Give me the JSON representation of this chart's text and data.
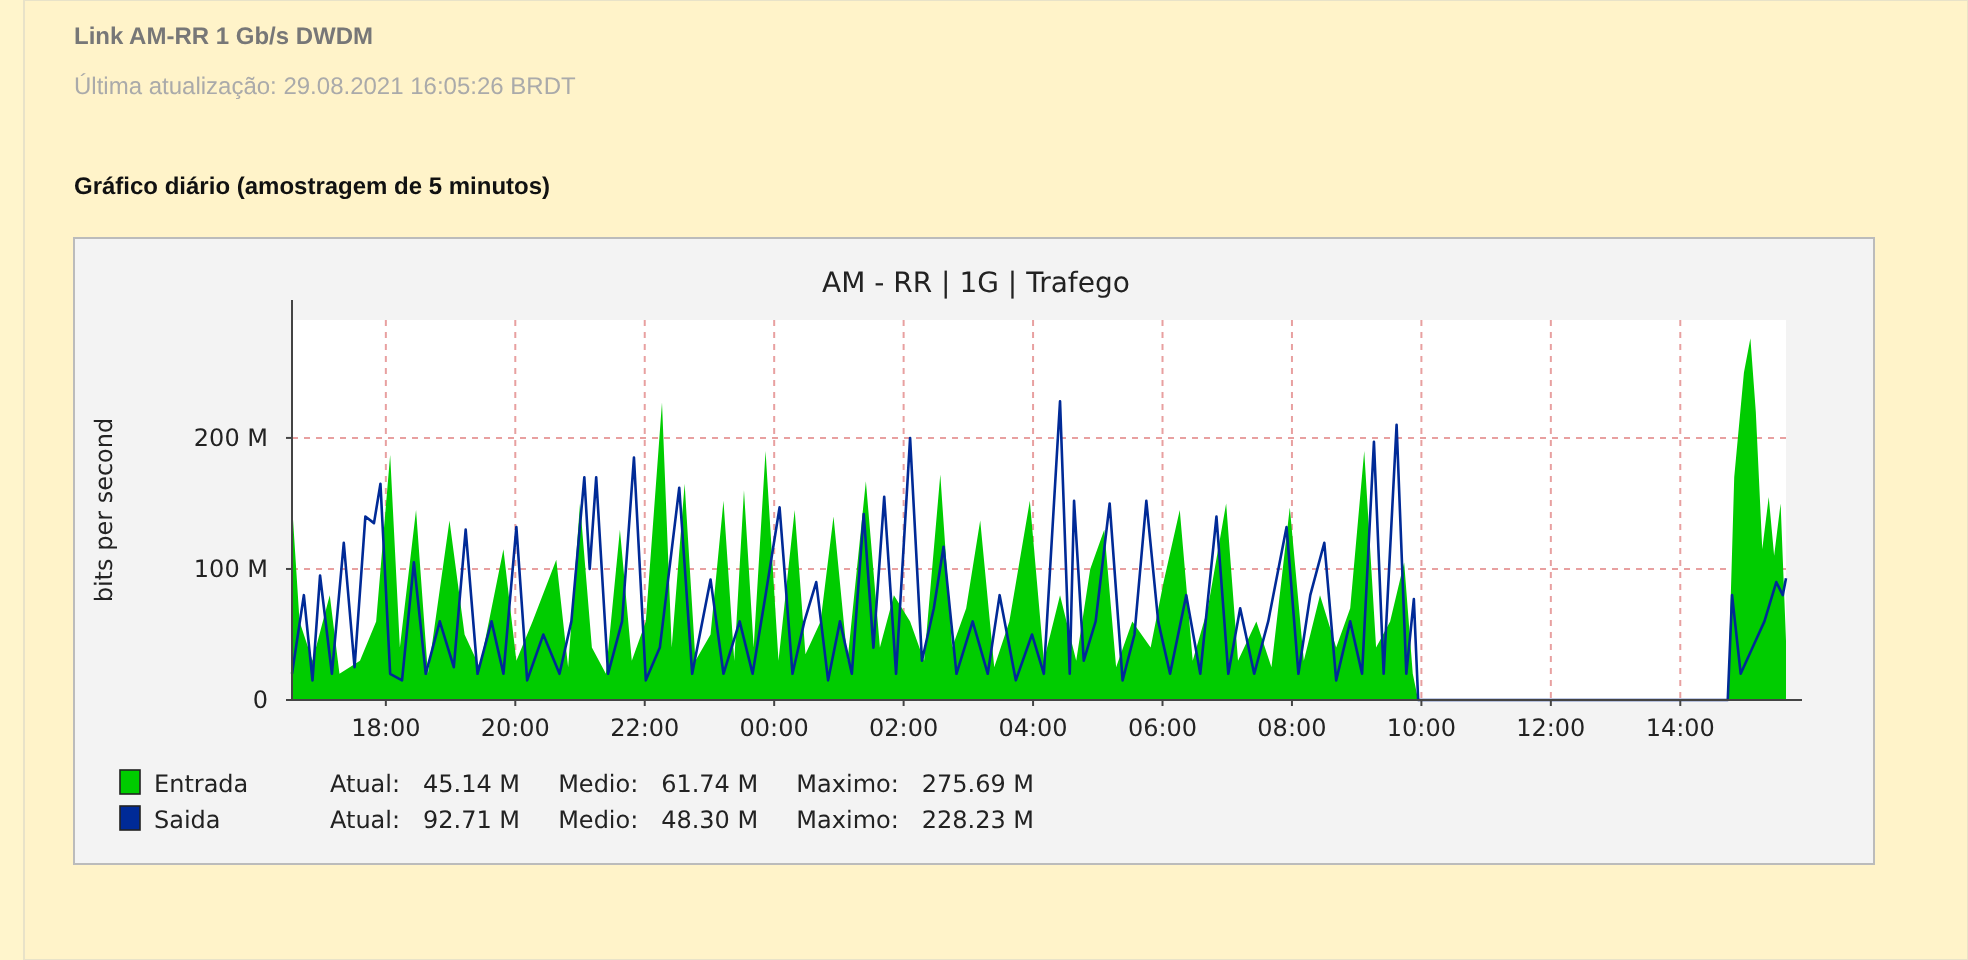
{
  "chart_data": {
    "type": "area",
    "title": "Link AM-RR 1 Gb/s DWDM",
    "subtitle": "Última atualização: 29.08.2021 16:05:26 BRDT",
    "ylabel": "bits per second",
    "annotations": [
      "Gráfico diário (amostragem de 5 minutos)",
      "AM - RR | 1G | Trafego",
      "Atual:   45.14 M     Medio:   61.74 M     Maximo:   275.69 M",
      "Atual:   92.71 M     Medio:   48.30 M     Maximo:   228.23 M"
    ],
    "xlim": [
      "2021-08-28T16:33",
      "2021-08-29T15:38"
    ],
    "ylim": [
      0,
      290
    ],
    "xticks": [
      {
        "value": "2021-08-28T18:00",
        "label": "18:00"
      },
      {
        "value": "2021-08-28T20:00",
        "label": "20:00"
      },
      {
        "value": "2021-08-28T22:00",
        "label": "22:00"
      },
      {
        "value": "2021-08-29T00:00",
        "label": "00:00"
      },
      {
        "value": "2021-08-29T02:00",
        "label": "02:00"
      },
      {
        "value": "2021-08-29T04:00",
        "label": "04:00"
      },
      {
        "value": "2021-08-29T06:00",
        "label": "06:00"
      },
      {
        "value": "2021-08-29T08:00",
        "label": "08:00"
      },
      {
        "value": "2021-08-29T10:00",
        "label": "10:00"
      },
      {
        "value": "2021-08-29T12:00",
        "label": "12:00"
      },
      {
        "value": "2021-08-29T14:00",
        "label": "14:00"
      }
    ],
    "yticks": [
      0,
      {
        "value": 100,
        "label": "100 M"
      },
      {
        "value": 200,
        "label": "200 M"
      }
    ],
    "grid": true,
    "legend": "bottom left",
    "series": [
      {
        "name": "Entrada",
        "color": "#00cc00",
        "x": [
          "2021-08-28T16:33",
          "2021-08-28T16:40",
          "2021-08-28T16:52",
          "2021-08-28T17:08",
          "2021-08-28T17:17",
          "2021-08-28T17:36",
          "2021-08-28T17:51",
          "2021-08-28T18:04",
          "2021-08-28T18:13",
          "2021-08-28T18:28",
          "2021-08-28T18:39",
          "2021-08-28T18:59",
          "2021-08-28T19:13",
          "2021-08-28T19:27",
          "2021-08-28T19:49",
          "2021-08-28T20:01",
          "2021-08-28T20:16",
          "2021-08-28T20:38",
          "2021-08-28T20:49",
          "2021-08-28T21:00",
          "2021-08-28T21:11",
          "2021-08-28T21:24",
          "2021-08-28T21:37",
          "2021-08-28T21:48",
          "2021-08-28T22:01",
          "2021-08-28T22:16",
          "2021-08-28T22:25",
          "2021-08-28T22:37",
          "2021-08-28T22:47",
          "2021-08-28T23:01",
          "2021-08-28T23:13",
          "2021-08-28T23:23",
          "2021-08-28T23:32",
          "2021-08-28T23:41",
          "2021-08-28T23:52",
          "2021-08-29T00:04",
          "2021-08-29T00:19",
          "2021-08-29T00:29",
          "2021-08-29T00:43",
          "2021-08-29T00:55",
          "2021-08-29T01:08",
          "2021-08-29T01:25",
          "2021-08-29T01:38",
          "2021-08-29T01:51",
          "2021-08-29T02:06",
          "2021-08-29T02:19",
          "2021-08-29T02:34",
          "2021-08-29T02:45",
          "2021-08-29T02:58",
          "2021-08-29T03:11",
          "2021-08-29T03:24",
          "2021-08-29T03:38",
          "2021-08-29T03:57",
          "2021-08-29T04:10",
          "2021-08-29T04:25",
          "2021-08-29T04:40",
          "2021-08-29T04:53",
          "2021-08-29T05:06",
          "2021-08-29T05:17",
          "2021-08-29T05:32",
          "2021-08-29T05:49",
          "2021-08-29T06:01",
          "2021-08-29T06:16",
          "2021-08-29T06:28",
          "2021-08-29T06:42",
          "2021-08-29T06:59",
          "2021-08-29T07:10",
          "2021-08-29T07:27",
          "2021-08-29T07:41",
          "2021-08-29T07:58",
          "2021-08-29T08:11",
          "2021-08-29T08:26",
          "2021-08-29T08:41",
          "2021-08-29T08:54",
          "2021-08-29T09:07",
          "2021-08-29T09:18",
          "2021-08-29T09:31",
          "2021-08-29T09:44",
          "2021-08-29T09:52",
          "2021-08-29T09:57",
          "2021-08-29T12:00",
          "2021-08-29T14:44",
          "2021-08-29T14:50",
          "2021-08-29T14:59",
          "2021-08-29T15:05",
          "2021-08-29T15:10",
          "2021-08-29T15:16",
          "2021-08-29T15:22",
          "2021-08-29T15:27",
          "2021-08-29T15:33",
          "2021-08-29T15:38"
        ],
        "values": [
          150,
          60,
          30,
          80,
          20,
          30,
          60,
          187,
          40,
          145,
          20,
          137,
          50,
          25,
          115,
          30,
          60,
          107,
          25,
          150,
          40,
          20,
          130,
          30,
          60,
          227,
          40,
          165,
          30,
          50,
          152,
          30,
          160,
          40,
          190,
          30,
          145,
          35,
          60,
          140,
          30,
          167,
          40,
          80,
          60,
          30,
          172,
          40,
          70,
          137,
          25,
          60,
          152,
          30,
          80,
          30,
          100,
          130,
          25,
          60,
          40,
          90,
          145,
          30,
          70,
          150,
          30,
          60,
          25,
          147,
          30,
          80,
          40,
          70,
          190,
          40,
          60,
          105,
          20,
          0,
          0,
          0,
          170,
          250,
          276,
          220,
          115,
          155,
          110,
          150,
          45
        ]
      },
      {
        "name": "Saida",
        "type": "line",
        "color": "#002a97",
        "x": [
          "2021-08-28T16:33",
          "2021-08-28T16:44",
          "2021-08-28T16:52",
          "2021-08-28T16:59",
          "2021-08-28T17:10",
          "2021-08-28T17:21",
          "2021-08-28T17:31",
          "2021-08-28T17:41",
          "2021-08-28T17:49",
          "2021-08-28T17:55",
          "2021-08-28T18:04",
          "2021-08-28T18:15",
          "2021-08-28T18:26",
          "2021-08-28T18:37",
          "2021-08-28T18:50",
          "2021-08-28T19:03",
          "2021-08-28T19:14",
          "2021-08-28T19:25",
          "2021-08-28T19:38",
          "2021-08-28T19:49",
          "2021-08-28T20:01",
          "2021-08-28T20:11",
          "2021-08-28T20:26",
          "2021-08-28T20:41",
          "2021-08-28T20:52",
          "2021-08-28T21:04",
          "2021-08-28T21:09",
          "2021-08-28T21:15",
          "2021-08-28T21:26",
          "2021-08-28T21:39",
          "2021-08-28T21:50",
          "2021-08-28T22:01",
          "2021-08-28T22:14",
          "2021-08-28T22:32",
          "2021-08-28T22:44",
          "2021-08-28T23:01",
          "2021-08-28T23:13",
          "2021-08-28T23:28",
          "2021-08-28T23:40",
          "2021-08-28T23:52",
          "2021-08-29T00:05",
          "2021-08-29T00:17",
          "2021-08-29T00:28",
          "2021-08-29T00:39",
          "2021-08-29T00:50",
          "2021-08-29T01:01",
          "2021-08-29T01:12",
          "2021-08-29T01:23",
          "2021-08-29T01:32",
          "2021-08-29T01:42",
          "2021-08-29T01:53",
          "2021-08-29T02:06",
          "2021-08-29T02:17",
          "2021-08-29T02:28",
          "2021-08-29T02:37",
          "2021-08-29T02:49",
          "2021-08-29T03:04",
          "2021-08-29T03:18",
          "2021-08-29T03:29",
          "2021-08-29T03:44",
          "2021-08-29T03:59",
          "2021-08-29T04:10",
          "2021-08-29T04:25",
          "2021-08-29T04:34",
          "2021-08-29T04:38",
          "2021-08-29T04:47",
          "2021-08-29T04:58",
          "2021-08-29T05:11",
          "2021-08-29T05:23",
          "2021-08-29T05:34",
          "2021-08-29T05:45",
          "2021-08-29T05:56",
          "2021-08-29T06:07",
          "2021-08-29T06:22",
          "2021-08-29T06:35",
          "2021-08-29T06:50",
          "2021-08-29T07:01",
          "2021-08-29T07:12",
          "2021-08-29T07:25",
          "2021-08-29T07:38",
          "2021-08-29T07:55",
          "2021-08-29T08:06",
          "2021-08-29T08:17",
          "2021-08-29T08:30",
          "2021-08-29T08:41",
          "2021-08-29T08:54",
          "2021-08-29T09:05",
          "2021-08-29T09:16",
          "2021-08-29T09:25",
          "2021-08-29T09:37",
          "2021-08-29T09:46",
          "2021-08-29T09:53",
          "2021-08-29T09:57",
          "2021-08-29T12:00",
          "2021-08-29T14:44",
          "2021-08-29T14:48",
          "2021-08-29T14:56",
          "2021-08-29T15:07",
          "2021-08-29T15:18",
          "2021-08-29T15:29",
          "2021-08-29T15:35",
          "2021-08-29T15:38"
        ],
        "values": [
          20,
          80,
          15,
          95,
          20,
          120,
          25,
          140,
          135,
          165,
          20,
          15,
          105,
          20,
          60,
          25,
          130,
          20,
          60,
          20,
          132,
          15,
          50,
          20,
          60,
          170,
          100,
          170,
          20,
          60,
          185,
          15,
          40,
          162,
          20,
          92,
          20,
          60,
          20,
          80,
          147,
          20,
          60,
          90,
          15,
          60,
          20,
          142,
          40,
          155,
          20,
          200,
          30,
          70,
          117,
          20,
          60,
          20,
          80,
          15,
          50,
          20,
          228,
          20,
          152,
          30,
          60,
          150,
          15,
          50,
          152,
          60,
          20,
          80,
          20,
          140,
          20,
          70,
          20,
          60,
          132,
          20,
          80,
          120,
          15,
          60,
          20,
          197,
          20,
          210,
          20,
          77,
          0,
          0,
          0,
          80,
          20,
          40,
          60,
          90,
          80,
          93
        ]
      }
    ]
  }
}
